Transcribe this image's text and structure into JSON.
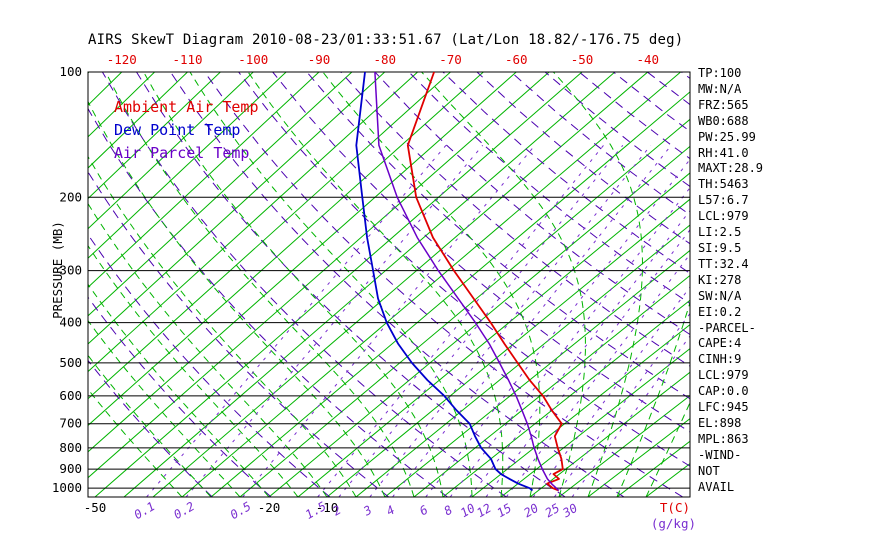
{
  "title": "AIRS SkewT Diagram 2010-08-23/01:33:51.67 (Lat/Lon 18.82/-176.75 deg)",
  "colors": {
    "isotherm_green": "#00b400",
    "moist_adiabat_green": "#00b400",
    "mixing_ratio_violet": "#7a2fd0",
    "dry_adiabat_violet": "#4b00b0",
    "axis_black": "#000000",
    "temp_red": "#e00000",
    "dewpoint_blue": "#0000cd",
    "parcel_violet": "#6a00c8"
  },
  "legend": {
    "items": [
      {
        "label": "Ambient Air Temp",
        "color": "#e00000"
      },
      {
        "label": "Dew Point Temp",
        "color": "#0000cd"
      },
      {
        "label": "Air Parcel Temp",
        "color": "#6a00c8"
      }
    ]
  },
  "axes": {
    "pressure_axis_label": "PRESSURE (MB)",
    "pressure_ticks_mb": [
      100,
      200,
      300,
      400,
      500,
      600,
      700,
      800,
      900,
      1000
    ],
    "top_temperature_ticks_c": [
      -120,
      -110,
      -100,
      -90,
      -80,
      -70,
      -60,
      -50,
      -40
    ],
    "bottom_temperature_ticks_c": [
      -50,
      -20,
      -10
    ],
    "mixing_ratio_ticks_gkg": [
      0.1,
      0.2,
      0.5,
      1.5,
      2,
      3,
      4,
      6,
      8,
      10,
      12,
      15,
      20,
      25,
      30
    ],
    "temperature_unit_label": "T(C)",
    "mixing_ratio_unit_label": "(g/kg)"
  },
  "stats_panel": {
    "lines": [
      "TP:100",
      "MW:N/A",
      "FRZ:565",
      "WB0:688",
      "PW:25.99",
      "RH:41.0",
      "MAXT:28.9",
      "TH:5463",
      "L57:6.7",
      "LCL:979",
      "LI:2.5",
      "SI:9.5",
      "TT:32.4",
      "KI:278",
      "SW:N/A",
      "EI:0.2",
      "-PARCEL-",
      "CAPE:4",
      "CINH:9",
      "LCL:979",
      "CAP:0.0",
      "LFC:945",
      "EL:898",
      "MPL:863",
      "-WIND-",
      "NOT",
      "AVAIL"
    ]
  },
  "chart_data": {
    "type": "line",
    "title": "AIRS SkewT Diagram 2010-08-23/01:33:51.67 (Lat/Lon 18.82/-176.75 deg)",
    "x_axis": {
      "label": "T(C)",
      "skewed_isotherms": true,
      "top_ticks_c": [
        -120,
        -110,
        -100,
        -90,
        -80,
        -70,
        -60,
        -50,
        -40
      ],
      "bottom_ticks_c": [
        -50,
        -20,
        -10
      ]
    },
    "y_axis": {
      "label": "PRESSURE (MB)",
      "scale": "log",
      "ticks_mb": [
        100,
        200,
        300,
        400,
        500,
        600,
        700,
        800,
        900,
        1000
      ],
      "range_mb": [
        100,
        1050
      ]
    },
    "background": {
      "isotherms_c": {
        "from": -160,
        "to": 45,
        "step": 5
      },
      "dry_adiabats_theta_k": {
        "from": 240,
        "to": 460,
        "step": 10
      },
      "moist_adiabats_start_c": {
        "from": -35,
        "to": 45,
        "step": 5
      },
      "mixing_ratio_lines_gkg": [
        0.1,
        0.2,
        0.5,
        1.5,
        2,
        3,
        4,
        6,
        8,
        10,
        12,
        15,
        20,
        25,
        30
      ]
    },
    "series": [
      {
        "name": "Ambient Air Temp",
        "color": "#e00000",
        "width": 1.8,
        "data_name": "ambient-temp-curve",
        "points": [
          [
            1013,
            28.5
          ],
          [
            1000,
            27
          ],
          [
            975,
            25
          ],
          [
            950,
            26
          ],
          [
            925,
            24
          ],
          [
            900,
            24.5
          ],
          [
            850,
            22
          ],
          [
            800,
            19
          ],
          [
            750,
            16
          ],
          [
            700,
            14.5
          ],
          [
            650,
            10
          ],
          [
            600,
            5.5
          ],
          [
            550,
            0
          ],
          [
            500,
            -5.5
          ],
          [
            450,
            -11.5
          ],
          [
            400,
            -18
          ],
          [
            350,
            -25.5
          ],
          [
            300,
            -34
          ],
          [
            250,
            -43.5
          ],
          [
            200,
            -53.5
          ],
          [
            150,
            -64
          ],
          [
            100,
            -72.5
          ]
        ]
      },
      {
        "name": "Dew Point Temp",
        "color": "#0000cd",
        "width": 1.8,
        "data_name": "dew-point-curve",
        "points": [
          [
            1013,
            24
          ],
          [
            1000,
            23
          ],
          [
            975,
            20
          ],
          [
            950,
            17.5
          ],
          [
            925,
            15
          ],
          [
            900,
            13
          ],
          [
            850,
            10
          ],
          [
            800,
            6
          ],
          [
            750,
            2.5
          ],
          [
            700,
            -1
          ],
          [
            650,
            -6
          ],
          [
            600,
            -11
          ],
          [
            550,
            -17
          ],
          [
            500,
            -23
          ],
          [
            450,
            -29
          ],
          [
            400,
            -35
          ],
          [
            350,
            -41
          ],
          [
            300,
            -47
          ],
          [
            250,
            -54
          ],
          [
            200,
            -62
          ],
          [
            150,
            -72
          ],
          [
            100,
            -83
          ]
        ]
      },
      {
        "name": "Air Parcel Temp",
        "color": "#6a00c8",
        "width": 1.5,
        "data_name": "parcel-temp-curve",
        "points": [
          [
            1013,
            28.5
          ],
          [
            1000,
            27.6
          ],
          [
            979,
            26
          ],
          [
            950,
            24
          ],
          [
            900,
            21
          ],
          [
            850,
            18
          ],
          [
            800,
            15
          ],
          [
            750,
            12
          ],
          [
            700,
            8.7
          ],
          [
            650,
            5
          ],
          [
            600,
            1
          ],
          [
            550,
            -3.5
          ],
          [
            500,
            -8.5
          ],
          [
            450,
            -14
          ],
          [
            400,
            -20.5
          ],
          [
            350,
            -28
          ],
          [
            300,
            -36.5
          ],
          [
            250,
            -46
          ],
          [
            200,
            -56.5
          ],
          [
            150,
            -68.5
          ],
          [
            100,
            -81.5
          ]
        ]
      }
    ]
  }
}
